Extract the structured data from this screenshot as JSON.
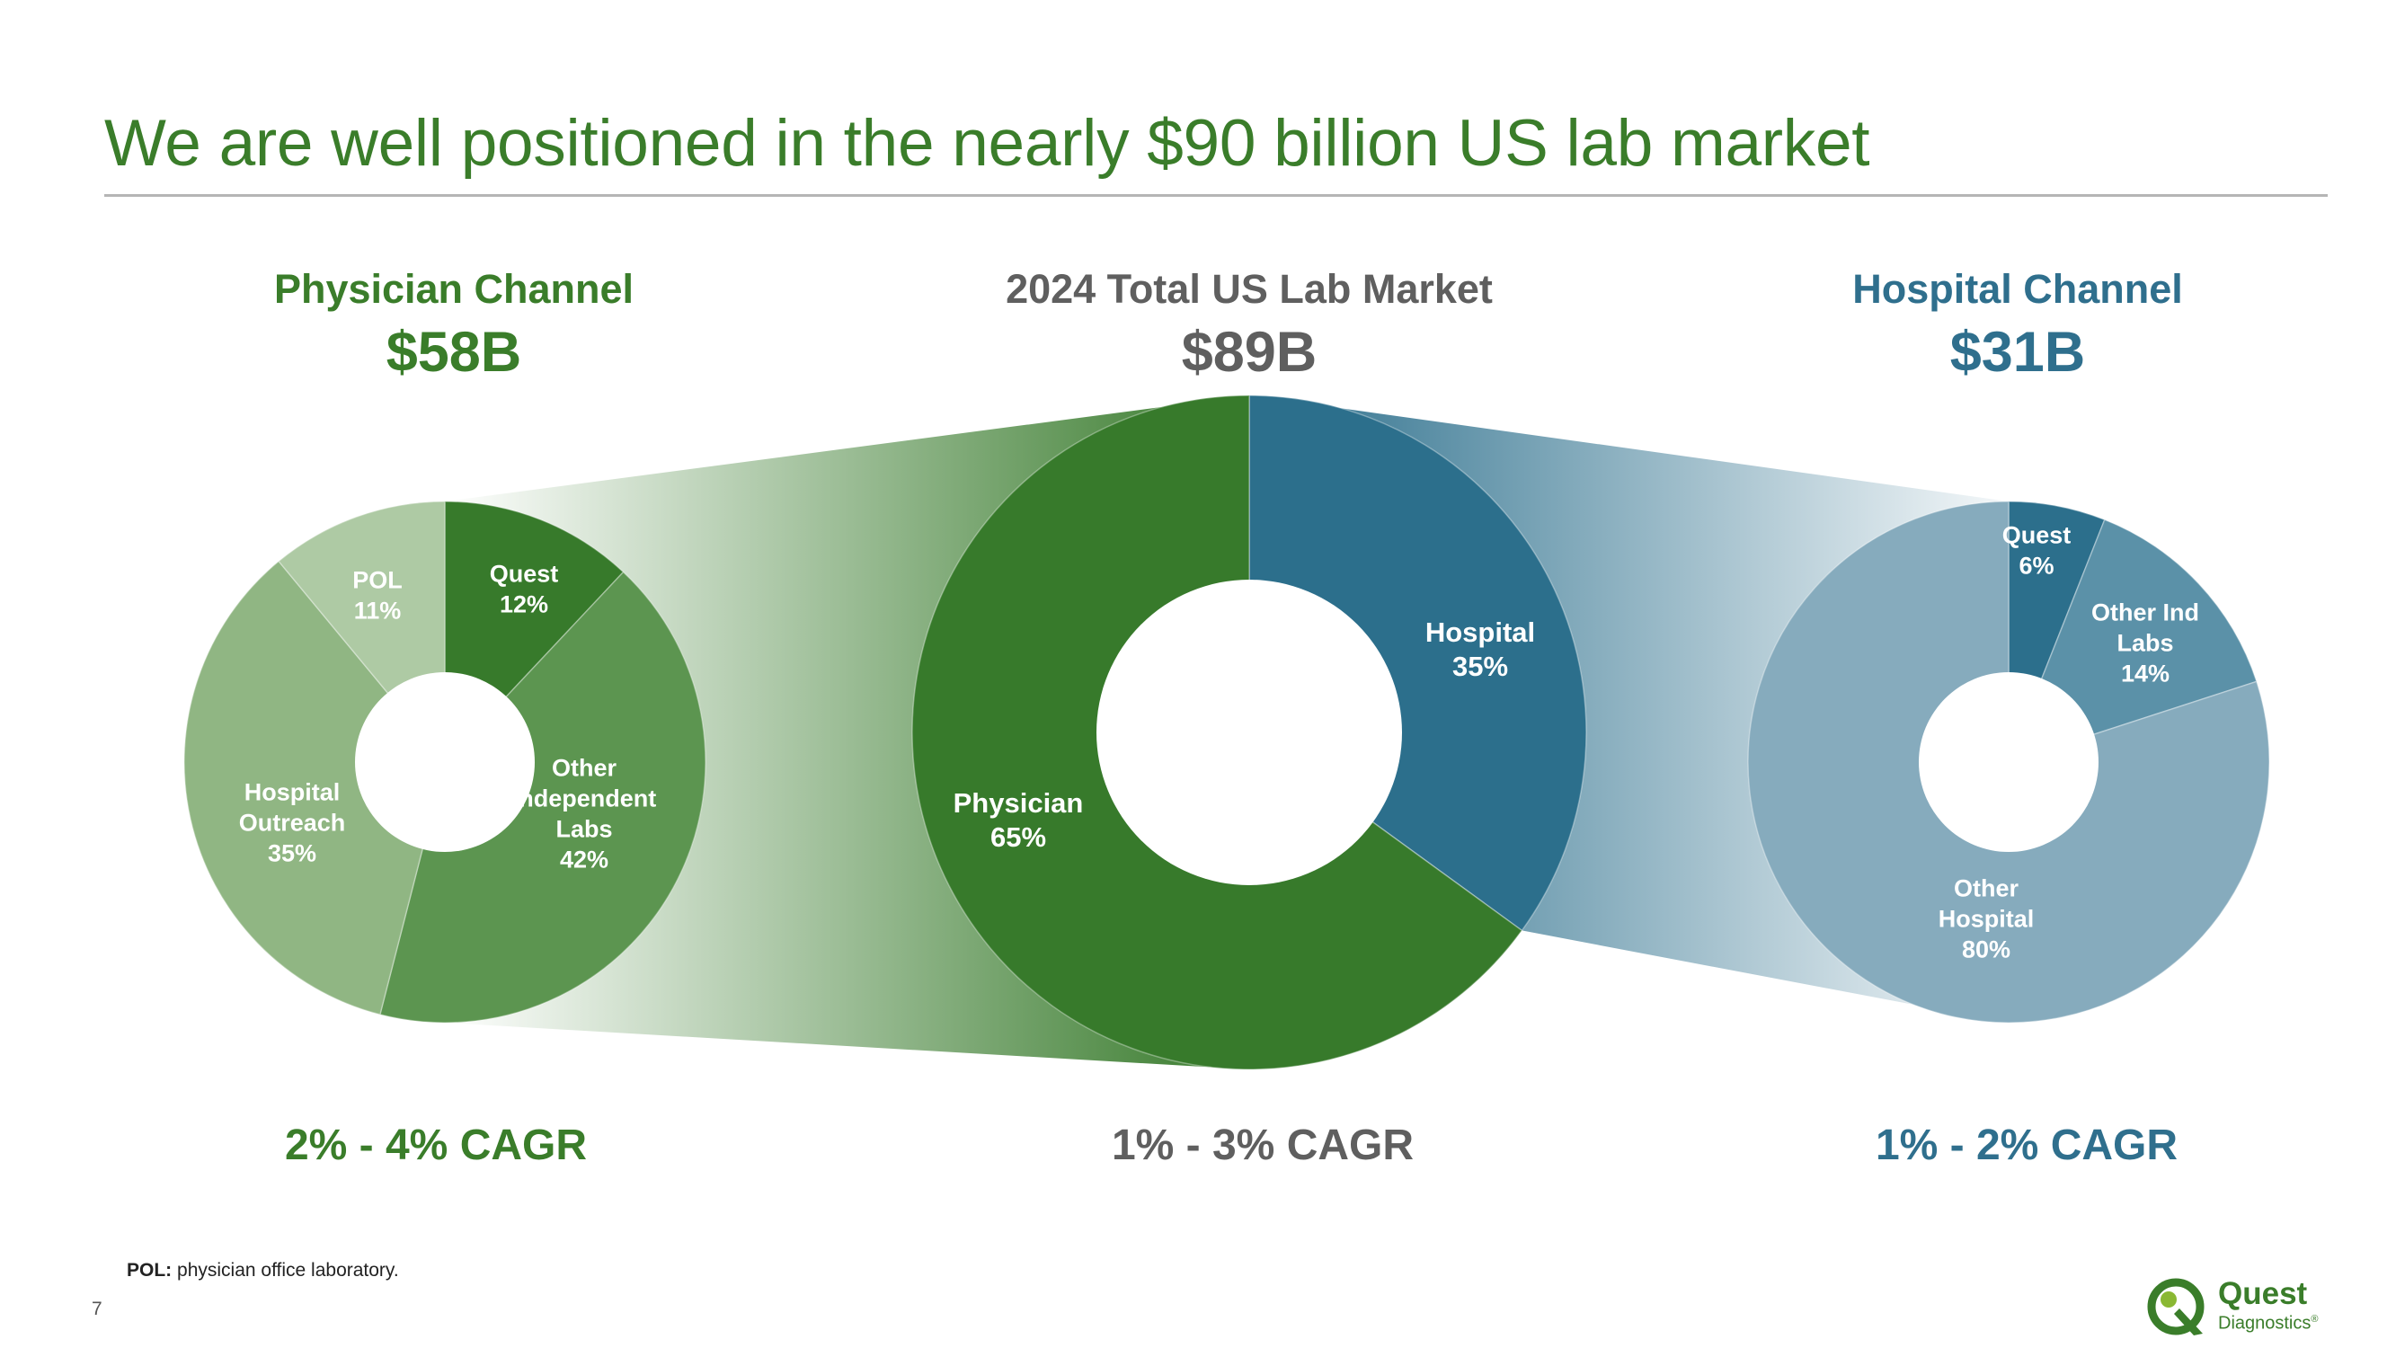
{
  "title": "We are well positioned in the nearly $90 billion US lab market",
  "colors": {
    "title_green": "#3a7d2a",
    "gray_text": "#5f5f5f",
    "hospital_blue": "#2f6f8d",
    "physician_dark": "#377a2b",
    "physician_mid": "#5c9550",
    "physician_light": "#90b683",
    "physician_lighter": "#aecaa4",
    "hospital_dark": "#2c6f8c",
    "hospital_mid": "#5b91a8",
    "hospital_light": "#86abbd"
  },
  "chart_data": [
    {
      "type": "pie",
      "title": "Physician Channel",
      "total": "$58B",
      "cagr": "2% - 4% CAGR",
      "slices": [
        {
          "label_lines": [
            "Quest",
            "12%"
          ],
          "label": "Quest",
          "value": 12
        },
        {
          "label_lines": [
            "Other",
            "Independent",
            "Labs",
            "42%"
          ],
          "label": "Other Independent Labs",
          "value": 42
        },
        {
          "label_lines": [
            "Hospital",
            "Outreach",
            "35%"
          ],
          "label": "Hospital Outreach",
          "value": 35
        },
        {
          "label_lines": [
            "POL",
            "11%"
          ],
          "label": "POL",
          "value": 11
        }
      ]
    },
    {
      "type": "pie",
      "title": "2024 Total US Lab Market",
      "total": "$89B",
      "cagr": "1% - 3% CAGR",
      "slices": [
        {
          "label_lines": [
            "Hospital",
            "35%"
          ],
          "label": "Hospital",
          "value": 35
        },
        {
          "label_lines": [
            "Physician",
            "65%"
          ],
          "label": "Physician",
          "value": 65
        }
      ]
    },
    {
      "type": "pie",
      "title": "Hospital Channel",
      "total": "$31B",
      "cagr": "1% - 2% CAGR",
      "slices": [
        {
          "label_lines": [
            "Quest",
            "6%"
          ],
          "label": "Quest",
          "value": 6
        },
        {
          "label_lines": [
            "Other Ind",
            "Labs",
            "14%"
          ],
          "label": "Other Ind Labs",
          "value": 14
        },
        {
          "label_lines": [
            "Other",
            "Hospital",
            "80%"
          ],
          "label": "Other Hospital",
          "value": 80
        }
      ]
    }
  ],
  "footnote": {
    "term": "POL:",
    "text": "physician office laboratory."
  },
  "page_number": "7",
  "logo": {
    "line1": "Quest",
    "line2": "Diagnostics"
  },
  "logo_reg": "®"
}
